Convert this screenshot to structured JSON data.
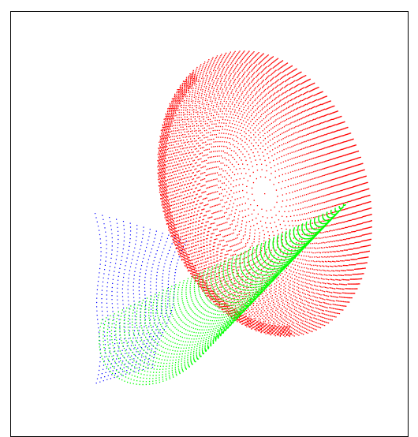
{
  "scene": {
    "background": "#ffffff",
    "border_color": "#000000",
    "surfaces": [
      {
        "name": "ellipsoid",
        "color": "#ff0000"
      },
      {
        "name": "cone",
        "color": "#00ff00"
      },
      {
        "name": "sheet",
        "color": "#0000ff"
      }
    ]
  }
}
